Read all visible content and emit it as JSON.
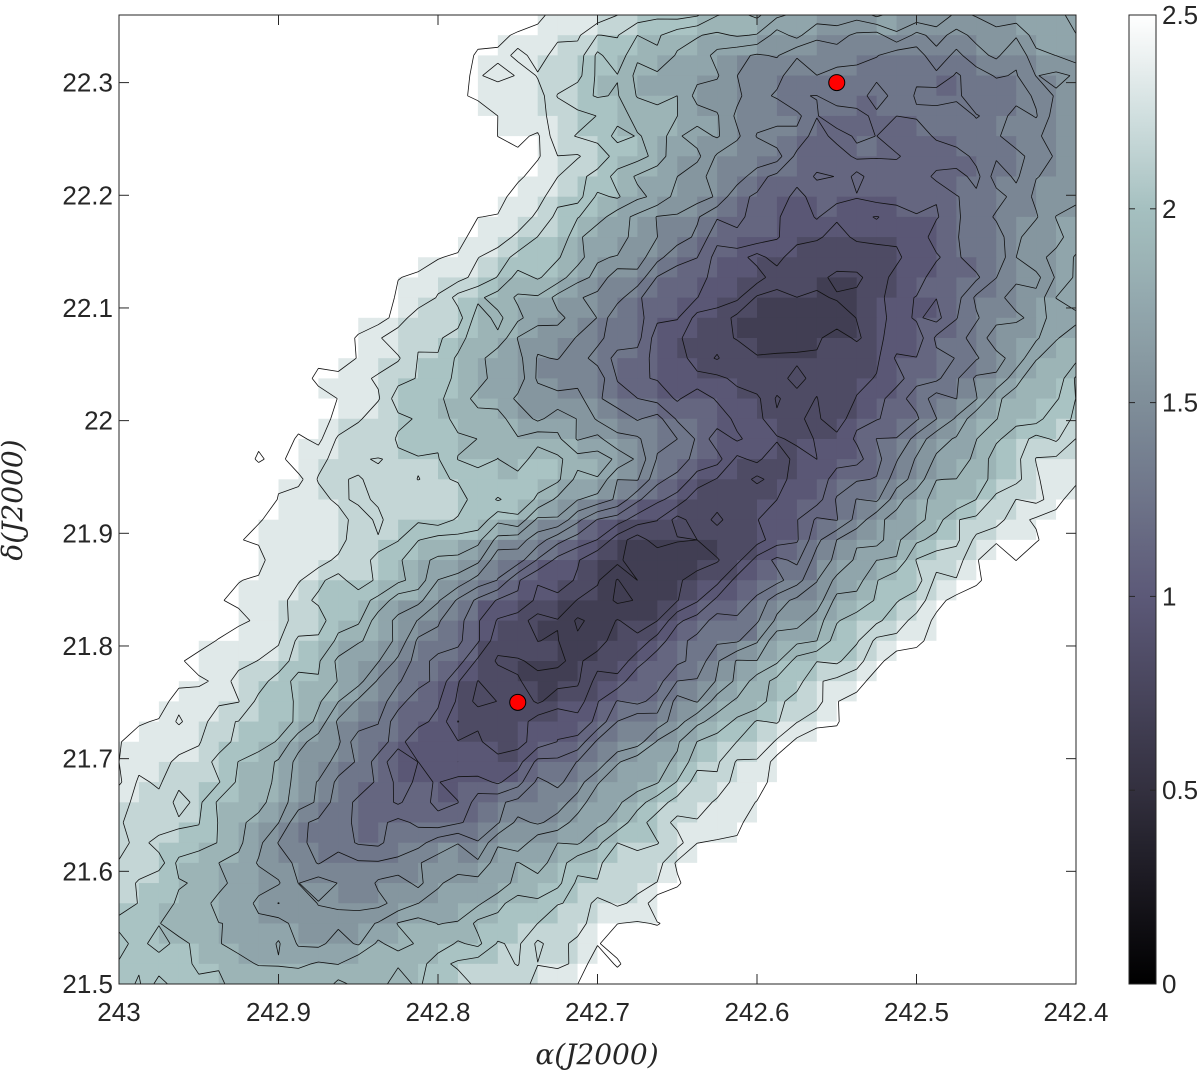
{
  "chart_data": {
    "type": "heatmap",
    "subtype": "filled-contour",
    "title": "",
    "xlabel": "α(J2000)",
    "ylabel": "δ(J2000)",
    "xlim": [
      243,
      242.4
    ],
    "ylim": [
      21.5,
      22.36
    ],
    "x_reversed": true,
    "x_ticks": [
      243,
      242.9,
      242.8,
      242.7,
      242.6,
      242.5,
      242.4
    ],
    "x_tick_labels": [
      "243",
      "242.9",
      "242.8",
      "242.7",
      "242.6",
      "242.5",
      "242.4"
    ],
    "y_ticks": [
      21.5,
      21.6,
      21.7,
      21.8,
      21.9,
      22.0,
      22.1,
      22.2,
      22.3
    ],
    "y_tick_labels": [
      "21.5",
      "21.6",
      "21.7",
      "21.8",
      "21.9",
      "22",
      "22.1",
      "22.2",
      "22.3"
    ],
    "colorbar": {
      "range": [
        0,
        2.5
      ],
      "ticks": [
        0,
        0.5,
        1,
        1.5,
        2,
        2.5
      ],
      "tick_labels": [
        "0",
        "0.5",
        "1",
        "1.5",
        "2",
        "2.5"
      ],
      "colors": [
        "#000000",
        "#33303f",
        "#5c5978",
        "#7f8e99",
        "#a5c0c0",
        "#ffffff"
      ]
    },
    "contour_levels": [
      0.6,
      0.75,
      0.9,
      1.05,
      1.2,
      1.35,
      1.5,
      1.65,
      1.8,
      1.95,
      2.1,
      2.25,
      2.4
    ],
    "markers": [
      {
        "x": 242.55,
        "y": 22.3,
        "color": "#ff0000"
      },
      {
        "x": 242.75,
        "y": 21.75,
        "color": "#ff0000"
      }
    ],
    "grid": false,
    "legend": "none"
  }
}
